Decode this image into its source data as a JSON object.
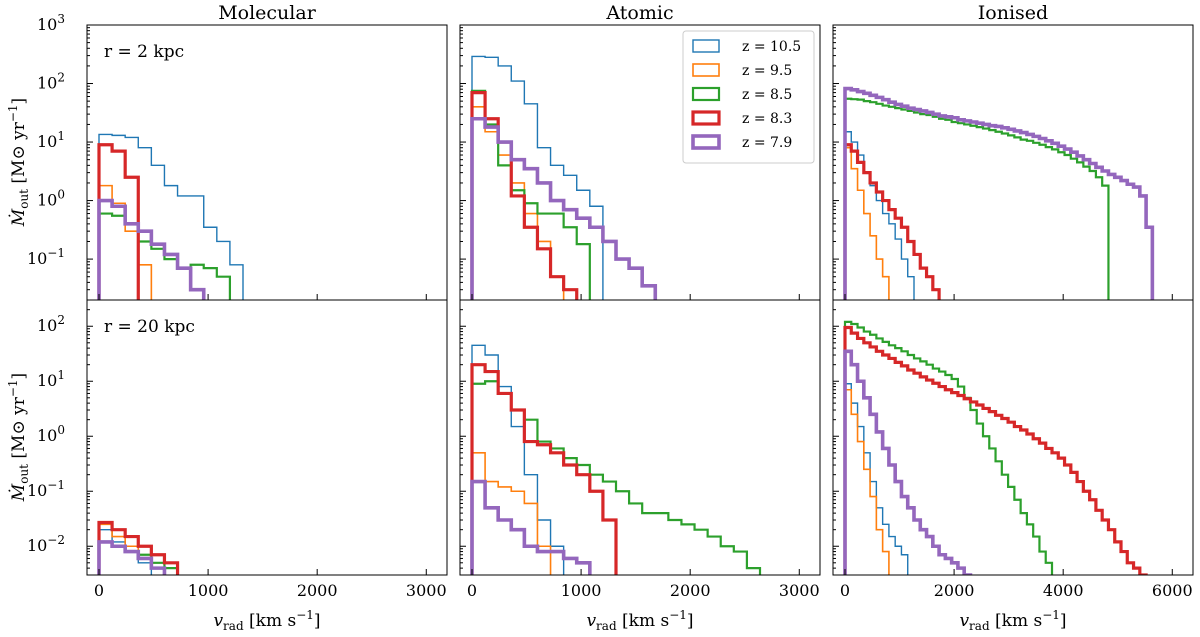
{
  "chart_data": {
    "type": "histogram",
    "column_titles": [
      "Molecular",
      "Atomic",
      "Ionised"
    ],
    "row_annotations": [
      "r = 2 kpc",
      "r = 20 kpc"
    ],
    "xlabel": "v_rad [km s^-1]",
    "ylabel": "Ṁ_out [M⊙ yr^-1]",
    "yscale": "log",
    "legend": {
      "placement": "upper-right of top-middle panel",
      "entries": [
        {
          "label": "z = 10.5",
          "color": "#1f77b4"
        },
        {
          "label": "z = 9.5",
          "color": "#ff7f0e"
        },
        {
          "label": "z = 8.5",
          "color": "#2ca02c"
        },
        {
          "label": "z = 8.3",
          "color": "#d62728"
        },
        {
          "label": "z = 7.9",
          "color": "#9467bd"
        }
      ]
    },
    "rows": [
      {
        "annotation": "r = 2 kpc",
        "ylim": [
          0.02,
          1000
        ],
        "ytick_labels": [
          "10^-1",
          "10^0",
          "10^1",
          "10^2",
          "10^3"
        ],
        "panels": [
          {
            "column": "Molecular",
            "xlim": [
              -110,
              3190
            ],
            "bin_width": 120,
            "xtick_labels": [
              "0",
              "1000",
              "2000",
              "3000"
            ],
            "series": [
              {
                "name": "z = 10.5",
                "values": [
                  13.5,
                  13,
                  12,
                  8,
                  4,
                  1.8,
                  1.2,
                  1.2,
                  0.35,
                  0.2,
                  0.08
                ]
              },
              {
                "name": "z = 9.5",
                "values": [
                  1.8,
                  0.9,
                  0.3,
                  0.08
                ]
              },
              {
                "name": "z = 8.5",
                "values": [
                  0.6,
                  0.55,
                  0.4,
                  0.2,
                  0.15,
                  0.1,
                  0.07,
                  0.08,
                  0.07,
                  0.05
                ]
              },
              {
                "name": "z = 8.3",
                "values": [
                  9,
                  7,
                  2.5
                ]
              },
              {
                "name": "z = 7.9",
                "values": [
                  1.0,
                  0.8,
                  0.4,
                  0.3,
                  0.18,
                  0.12,
                  0.07,
                  0.03
                ]
              }
            ]
          },
          {
            "column": "Atomic",
            "xlim": [
              -110,
              3190
            ],
            "bin_width": 120,
            "xtick_labels": [
              "0",
              "1000",
              "2000",
              "3000"
            ],
            "series": [
              {
                "name": "z = 10.5",
                "values": [
                  290,
                  280,
                  200,
                  110,
                  45,
                  8,
                  4,
                  2.7,
                  1.5,
                  0.8
                ]
              },
              {
                "name": "z = 9.5",
                "values": [
                  40,
                  15,
                  6,
                  2,
                  0.6,
                  0.2,
                  0.05
                ]
              },
              {
                "name": "z = 8.5",
                "values": [
                  75,
                  20,
                  4,
                  1.5,
                  0.9,
                  0.6,
                  0.6,
                  0.35,
                  0.18
                ]
              },
              {
                "name": "z = 8.3",
                "values": [
                  70,
                  25,
                  10,
                  1.2,
                  0.35,
                  0.15,
                  0.05,
                  0.03
                ]
              },
              {
                "name": "z = 7.9",
                "values": [
                  25,
                  18,
                  10,
                  5,
                  3.5,
                  2,
                  1.0,
                  0.7,
                  0.5,
                  0.35,
                  0.2,
                  0.1,
                  0.07,
                  0.035
                ]
              }
            ]
          },
          {
            "column": "Ionised",
            "xlim": [
              -220,
              6380
            ],
            "bin_width": 115,
            "xtick_labels": [
              "0",
              "2000",
              "4000",
              "6000"
            ],
            "series": [
              {
                "name": "z = 10.5",
                "values": [
                  15,
                  10,
                  6,
                  3,
                  1.8,
                  1.0,
                  0.6,
                  0.4,
                  0.22,
                  0.1,
                  0.05
                ]
              },
              {
                "name": "z = 9.5",
                "values": [
                  8,
                  3.5,
                  1.5,
                  0.6,
                  0.25,
                  0.1,
                  0.05
                ]
              },
              {
                "name": "z = 8.5",
                "values": [
                  55,
                  54,
                  53,
                  50,
                  48,
                  45,
                  42,
                  40,
                  38,
                  36,
                  34,
                  32,
                  30,
                  29,
                  27,
                  25,
                  24,
                  22,
                  21,
                  20,
                  19,
                  18,
                  17,
                  16,
                  15,
                  14,
                  13,
                  12,
                  11,
                  10.5,
                  9.7,
                  9,
                  8.2,
                  7.5,
                  6.7,
                  6,
                  5.2,
                  4.5,
                  3.8,
                  3.2,
                  2.5,
                  1.8
                ]
              },
              {
                "name": "z = 8.3",
                "values": [
                  9,
                  7,
                  4.5,
                  3,
                  2,
                  1.4,
                  1.0,
                  0.7,
                  0.5,
                  0.35,
                  0.2,
                  0.12,
                  0.07,
                  0.05,
                  0.03
                ]
              },
              {
                "name": "z = 7.9",
                "values": [
                  82,
                  78,
                  73,
                  68,
                  63,
                  58,
                  53,
                  48,
                  44,
                  41,
                  38,
                  36,
                  34,
                  32,
                  30,
                  28,
                  27,
                  26,
                  24,
                  23,
                  22,
                  21,
                  20,
                  19,
                  18.5,
                  17.5,
                  16.5,
                  15.5,
                  14.5,
                  13.5,
                  12.5,
                  11.5,
                  10.5,
                  9.5,
                  8.5,
                  7.6,
                  6.7,
                  5.8,
                  5,
                  4.3,
                  3.7,
                  3.2,
                  2.8,
                  2.5,
                  2.2,
                  1.9,
                  1.7,
                  1.2,
                  0.35
                ]
              }
            ]
          }
        ]
      },
      {
        "annotation": "r = 20 kpc",
        "ylim": [
          0.003,
          300
        ],
        "ytick_labels": [
          "10^-2",
          "10^-1",
          "10^0",
          "10^1",
          "10^2"
        ],
        "panels": [
          {
            "column": "Molecular",
            "xlim": [
              -110,
              3190
            ],
            "bin_width": 120,
            "xtick_labels": [
              "0",
              "1000",
              "2000",
              "3000"
            ],
            "series": [
              {
                "name": "z = 10.5",
                "values": [
                  0.02,
                  0.012,
                  0.01,
                  0.005
                ]
              },
              {
                "name": "z = 9.5",
                "values": [
                  0.025,
                  0.015,
                  0.01,
                  0.007,
                  0.005
                ]
              },
              {
                "name": "z = 8.5",
                "values": [
                  0.012,
                  0.01,
                  0.008,
                  0.007,
                  0.005,
                  0.004
                ]
              },
              {
                "name": "z = 8.3",
                "values": [
                  0.027,
                  0.02,
                  0.015,
                  0.01,
                  0.007,
                  0.005
                ]
              },
              {
                "name": "z = 7.9",
                "values": [
                  0.012,
                  0.01,
                  0.008,
                  0.006,
                  0.004
                ]
              }
            ]
          },
          {
            "column": "Atomic",
            "xlim": [
              -110,
              3190
            ],
            "bin_width": 120,
            "xtick_labels": [
              "0",
              "1000",
              "2000",
              "3000"
            ],
            "series": [
              {
                "name": "z = 10.5",
                "values": [
                  45,
                  30,
                  8,
                  1.5,
                  0.2,
                  0.03,
                  0.01
                ]
              },
              {
                "name": "z = 9.5",
                "values": [
                  0.5,
                  0.15,
                  0.12,
                  0.1,
                  0.06,
                  0.01
                ]
              },
              {
                "name": "z = 8.5",
                "values": [
                  9,
                  10,
                  6,
                  3,
                  2,
                  0.8,
                  0.6,
                  0.4,
                  0.3,
                  0.2,
                  0.15,
                  0.1,
                  0.06,
                  0.04,
                  0.04,
                  0.03,
                  0.025,
                  0.02,
                  0.015,
                  0.01,
                  0.008,
                  0.004
                ]
              },
              {
                "name": "z = 8.3",
                "values": [
                  20,
                  15,
                  6,
                  3,
                  0.8,
                  0.7,
                  0.5,
                  0.3,
                  0.2,
                  0.1,
                  0.03
                ]
              },
              {
                "name": "z = 7.9",
                "values": [
                  0.15,
                  0.05,
                  0.03,
                  0.02,
                  0.01,
                  0.008,
                  0.008,
                  0.006,
                  0.005
                ]
              }
            ]
          },
          {
            "column": "Ionised",
            "xlim": [
              -220,
              6380
            ],
            "bin_width": 115,
            "xtick_labels": [
              "0",
              "2000",
              "4000",
              "6000"
            ],
            "series": [
              {
                "name": "z = 10.5",
                "values": [
                  9,
                  4,
                  1.5,
                  0.5,
                  0.15,
                  0.05,
                  0.025,
                  0.015,
                  0.01,
                  0.007
                ]
              },
              {
                "name": "z = 9.5",
                "values": [
                  7,
                  2.5,
                  0.8,
                  0.25,
                  0.08,
                  0.02,
                  0.008
                ]
              },
              {
                "name": "z = 8.5",
                "values": [
                  120,
                  110,
                  95,
                  80,
                  70,
                  60,
                  52,
                  45,
                  40,
                  35,
                  30,
                  26,
                  23,
                  20,
                  17,
                  15,
                  13,
                  11,
                  8,
                  5,
                  3,
                  1.7,
                  1.0,
                  0.6,
                  0.35,
                  0.2,
                  0.12,
                  0.07,
                  0.04,
                  0.025,
                  0.015,
                  0.008,
                  0.005
                ]
              },
              {
                "name": "z = 8.3",
                "values": [
                  95,
                  75,
                  60,
                  50,
                  42,
                  35,
                  30,
                  26,
                  22,
                  19,
                  16,
                  14,
                  12,
                  10.5,
                  9.2,
                  8,
                  7,
                  6.2,
                  5.5,
                  4.8,
                  4.2,
                  3.7,
                  3.2,
                  2.8,
                  2.4,
                  2.1,
                  1.8,
                  1.5,
                  1.3,
                  1.1,
                  0.9,
                  0.75,
                  0.6,
                  0.5,
                  0.4,
                  0.3,
                  0.22,
                  0.15,
                  0.1,
                  0.07,
                  0.045,
                  0.03,
                  0.02,
                  0.012,
                  0.008,
                  0.005,
                  0.004,
                  0.003
                ]
              },
              {
                "name": "z = 7.9",
                "values": [
                  35,
                  20,
                  10,
                  5,
                  2.5,
                  1.2,
                  0.6,
                  0.3,
                  0.15,
                  0.08,
                  0.05,
                  0.03,
                  0.02,
                  0.015,
                  0.01,
                  0.007,
                  0.006,
                  0.005,
                  0.004,
                  0.003
                ]
              }
            ]
          }
        ]
      }
    ]
  }
}
